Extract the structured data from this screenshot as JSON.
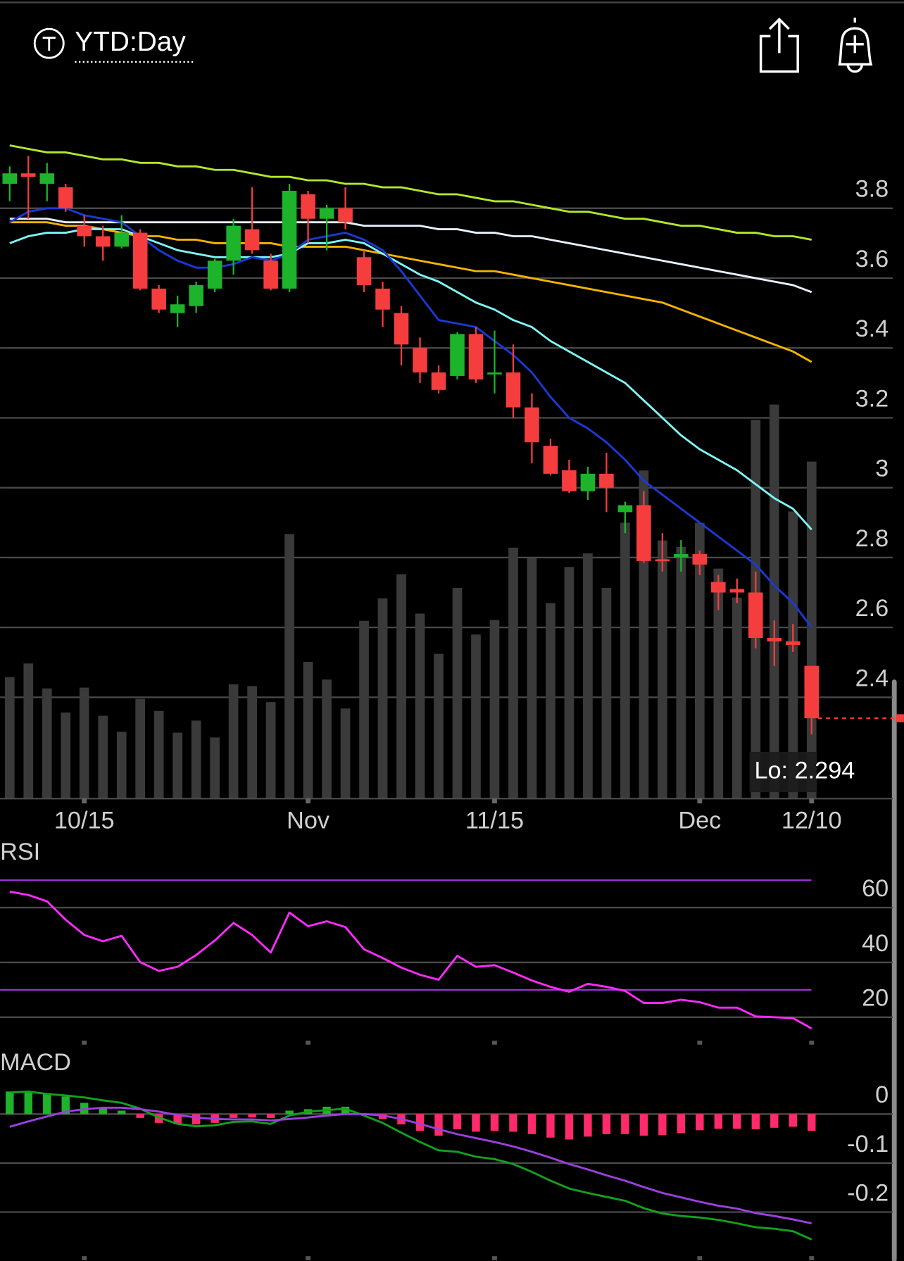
{
  "header": {
    "title": "YTD:Day"
  },
  "chart_data": [
    {
      "type": "candlestick",
      "categories": [
        null,
        null,
        null,
        null,
        "10/15",
        null,
        null,
        null,
        null,
        null,
        null,
        null,
        null,
        null,
        null,
        null,
        "Nov",
        null,
        null,
        null,
        null,
        null,
        null,
        null,
        null,
        null,
        "11/15",
        null,
        null,
        null,
        null,
        null,
        null,
        null,
        null,
        null,
        null,
        "Dec",
        null,
        null,
        null,
        null,
        null,
        "12/10"
      ],
      "open": [
        3.87,
        3.9,
        3.87,
        3.86,
        3.75,
        3.72,
        3.69,
        3.73,
        3.57,
        3.5,
        3.52,
        3.57,
        3.65,
        3.74,
        3.65,
        3.57,
        3.84,
        3.77,
        3.8,
        3.66,
        3.57,
        3.5,
        3.4,
        3.33,
        3.32,
        3.44,
        3.325,
        3.33,
        3.23,
        3.12,
        3.05,
        2.99,
        3.04,
        2.93,
        2.95,
        2.795,
        2.8,
        2.81,
        2.73,
        2.71,
        2.7,
        2.57,
        2.56,
        2.49
      ],
      "high": [
        3.92,
        3.95,
        3.93,
        3.87,
        3.78,
        3.75,
        3.78,
        3.74,
        3.58,
        3.55,
        3.59,
        3.655,
        3.77,
        3.86,
        3.67,
        3.87,
        3.85,
        3.81,
        3.86,
        3.68,
        3.59,
        3.52,
        3.43,
        3.35,
        3.445,
        3.46,
        3.45,
        3.41,
        3.27,
        3.14,
        3.08,
        3.06,
        3.1,
        2.96,
        2.99,
        2.87,
        2.85,
        2.82,
        2.75,
        2.74,
        2.76,
        2.62,
        2.61,
        2.49
      ],
      "low": [
        3.82,
        3.77,
        3.82,
        3.79,
        3.69,
        3.65,
        3.685,
        3.565,
        3.5,
        3.46,
        3.5,
        3.56,
        3.61,
        3.67,
        3.565,
        3.56,
        3.7,
        3.68,
        3.74,
        3.56,
        3.46,
        3.35,
        3.3,
        3.27,
        3.31,
        3.3,
        3.27,
        3.2,
        3.07,
        3.035,
        2.985,
        2.965,
        2.93,
        2.87,
        2.785,
        2.76,
        2.76,
        2.75,
        2.65,
        2.67,
        2.54,
        2.49,
        2.53,
        2.294
      ],
      "close": [
        3.9,
        3.89,
        3.9,
        3.8,
        3.72,
        3.69,
        3.73,
        3.57,
        3.51,
        3.525,
        3.58,
        3.65,
        3.75,
        3.68,
        3.57,
        3.85,
        3.77,
        3.8,
        3.76,
        3.58,
        3.51,
        3.41,
        3.33,
        3.28,
        3.44,
        3.31,
        3.33,
        3.23,
        3.13,
        3.04,
        2.99,
        3.04,
        3.0,
        2.95,
        2.79,
        2.79,
        2.81,
        2.78,
        2.7,
        2.7,
        2.57,
        2.56,
        2.55,
        2.34
      ],
      "volume": [
        151,
        168,
        137,
        107,
        138,
        103,
        83,
        124,
        109,
        82,
        97,
        76,
        142,
        140,
        120,
        329,
        170,
        148,
        112,
        221,
        249,
        279,
        230,
        180,
        262,
        204,
        222,
        312,
        299,
        243,
        288,
        305,
        262,
        343,
        408,
        321,
        313,
        343,
        286,
        250,
        471,
        490,
        357,
        419
      ],
      "volume_color": "#3a3a3a",
      "up_color": "#1db32a",
      "down_color": "#f63d3d",
      "moving_averages": [
        {
          "color": "#b2e82a",
          "values": [
            3.98,
            3.97,
            3.96,
            3.96,
            3.95,
            3.94,
            3.94,
            3.93,
            3.93,
            3.92,
            3.92,
            3.91,
            3.91,
            3.9,
            3.89,
            3.89,
            3.88,
            3.88,
            3.87,
            3.87,
            3.86,
            3.86,
            3.85,
            3.84,
            3.84,
            3.83,
            3.82,
            3.82,
            3.81,
            3.8,
            3.79,
            3.79,
            3.78,
            3.77,
            3.77,
            3.76,
            3.75,
            3.75,
            3.74,
            3.73,
            3.73,
            3.72,
            3.72,
            3.71
          ]
        },
        {
          "color": "#e8f0ff",
          "values": [
            3.77,
            3.77,
            3.77,
            3.76,
            3.76,
            3.76,
            3.76,
            3.76,
            3.76,
            3.76,
            3.76,
            3.76,
            3.76,
            3.76,
            3.76,
            3.76,
            3.76,
            3.76,
            3.76,
            3.75,
            3.75,
            3.75,
            3.75,
            3.74,
            3.74,
            3.73,
            3.73,
            3.72,
            3.72,
            3.71,
            3.7,
            3.69,
            3.68,
            3.67,
            3.66,
            3.65,
            3.64,
            3.63,
            3.62,
            3.61,
            3.6,
            3.59,
            3.58,
            3.56
          ]
        },
        {
          "color": "#f5b400",
          "values": [
            3.76,
            3.76,
            3.76,
            3.75,
            3.75,
            3.74,
            3.73,
            3.72,
            3.72,
            3.71,
            3.71,
            3.7,
            3.7,
            3.7,
            3.7,
            3.69,
            3.69,
            3.69,
            3.69,
            3.68,
            3.67,
            3.66,
            3.65,
            3.64,
            3.63,
            3.62,
            3.62,
            3.61,
            3.6,
            3.59,
            3.58,
            3.57,
            3.56,
            3.55,
            3.54,
            3.53,
            3.51,
            3.49,
            3.47,
            3.45,
            3.43,
            3.41,
            3.39,
            3.36
          ]
        },
        {
          "color": "#7ff5f5",
          "values": [
            3.7,
            3.72,
            3.73,
            3.73,
            3.74,
            3.74,
            3.74,
            3.72,
            3.7,
            3.68,
            3.67,
            3.66,
            3.66,
            3.66,
            3.66,
            3.67,
            3.7,
            3.7,
            3.71,
            3.7,
            3.67,
            3.64,
            3.61,
            3.59,
            3.56,
            3.53,
            3.51,
            3.48,
            3.46,
            3.42,
            3.39,
            3.36,
            3.33,
            3.3,
            3.25,
            3.2,
            3.15,
            3.11,
            3.08,
            3.05,
            3.01,
            2.97,
            2.94,
            2.88
          ]
        },
        {
          "color": "#1a3ad6",
          "values": [
            3.76,
            3.79,
            3.8,
            3.8,
            3.78,
            3.77,
            3.76,
            3.72,
            3.68,
            3.65,
            3.63,
            3.63,
            3.64,
            3.66,
            3.65,
            3.67,
            3.71,
            3.72,
            3.73,
            3.71,
            3.68,
            3.62,
            3.55,
            3.48,
            3.47,
            3.46,
            3.42,
            3.38,
            3.33,
            3.26,
            3.2,
            3.17,
            3.13,
            3.08,
            3.02,
            2.98,
            2.94,
            2.9,
            2.86,
            2.82,
            2.78,
            2.72,
            2.67,
            2.6
          ]
        }
      ],
      "ylim": [
        2.11,
        4.12
      ],
      "yticks": [
        2.4,
        2.6,
        2.8,
        3,
        3.2,
        3.4,
        3.6,
        3.8
      ],
      "annotation": "Lo: 2.294"
    },
    {
      "type": "line",
      "title": "RSI",
      "values": [
        65.8,
        64.6,
        62.3,
        55.6,
        50.0,
        47.7,
        49.7,
        40.1,
        36.9,
        38.4,
        42.7,
        48.0,
        54.4,
        50.0,
        43.6,
        58.2,
        53.2,
        55.0,
        52.9,
        44.8,
        41.6,
        38.1,
        35.5,
        33.7,
        42.4,
        38.4,
        39.0,
        36.3,
        33.4,
        31.1,
        29.3,
        32.2,
        31.1,
        29.6,
        25.2,
        25.2,
        26.4,
        25.5,
        23.5,
        23.5,
        20.3,
        20.0,
        19.7,
        15.9
      ],
      "color": "#ff2bff",
      "bands": [
        70,
        30
      ],
      "band_color": "#9b30d9",
      "ylim": [
        10,
        76
      ],
      "yticks": [
        20,
        40,
        60
      ]
    },
    {
      "type": "macd",
      "title": "MACD",
      "series": [
        {
          "color": "#14a11e",
          "values": [
            0.044,
            0.046,
            0.041,
            0.038,
            0.034,
            0.028,
            0.023,
            0.011,
            -0.007,
            -0.02,
            -0.025,
            -0.023,
            -0.016,
            -0.015,
            -0.02,
            -0.003,
            0.005,
            0.008,
            0.011,
            -0.003,
            -0.018,
            -0.038,
            -0.057,
            -0.074,
            -0.077,
            -0.087,
            -0.092,
            -0.102,
            -0.118,
            -0.136,
            -0.152,
            -0.161,
            -0.169,
            -0.177,
            -0.192,
            -0.203,
            -0.208,
            -0.211,
            -0.216,
            -0.223,
            -0.231,
            -0.234,
            -0.239,
            -0.256
          ]
        },
        {
          "color": "#9b40e0",
          "values": [
            -0.026,
            -0.015,
            -0.005,
            0.005,
            0.01,
            0.013,
            0.013,
            0.01,
            0.005,
            -0.002,
            -0.007,
            -0.01,
            -0.011,
            -0.011,
            -0.013,
            -0.01,
            -0.007,
            -0.003,
            0,
            0,
            -0.003,
            -0.01,
            -0.02,
            -0.031,
            -0.041,
            -0.049,
            -0.057,
            -0.066,
            -0.077,
            -0.089,
            -0.102,
            -0.113,
            -0.125,
            -0.136,
            -0.149,
            -0.161,
            -0.17,
            -0.179,
            -0.187,
            -0.193,
            -0.202,
            -0.208,
            -0.215,
            -0.223
          ]
        }
      ],
      "histogram": [
        0.046,
        0.046,
        0.043,
        0.036,
        0.023,
        0.013,
        0.007,
        -0.008,
        -0.018,
        -0.021,
        -0.021,
        -0.018,
        -0.008,
        -0.007,
        -0.008,
        0.007,
        0.01,
        0.015,
        0.015,
        -0.002,
        -0.01,
        -0.021,
        -0.034,
        -0.044,
        -0.031,
        -0.036,
        -0.034,
        -0.036,
        -0.041,
        -0.048,
        -0.052,
        -0.046,
        -0.041,
        -0.041,
        -0.044,
        -0.043,
        -0.039,
        -0.033,
        -0.03,
        -0.03,
        -0.031,
        -0.028,
        -0.026,
        -0.034
      ],
      "up_color": "#1db32a",
      "down_color": "#ff2a6a",
      "ylim": [
        -0.29,
        0.14
      ],
      "yticks": [
        0,
        -0.1,
        -0.2
      ]
    }
  ]
}
